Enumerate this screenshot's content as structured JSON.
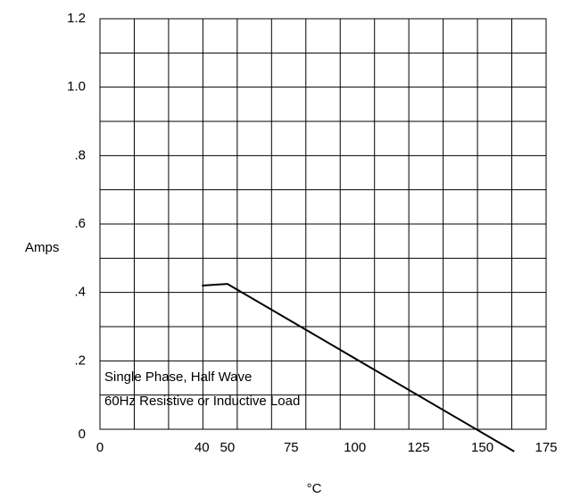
{
  "chart_data": {
    "type": "line",
    "y_label": "Amps",
    "x_label": "°C",
    "annotations": [
      "Single Phase, Half Wave",
      "60Hz Resistive or Inductive Load"
    ],
    "x": [
      40,
      50,
      162.5
    ],
    "series": [
      {
        "color": "#000000",
        "values": [
          0.42,
          0.425,
          -0.065
        ]
      }
    ],
    "xlim": [
      0,
      175
    ],
    "xticks": [
      0,
      40,
      50,
      75,
      100,
      125,
      150,
      175
    ],
    "ylim": [
      0,
      1.2
    ],
    "yticks": [
      0,
      {
        "value": 0.2,
        "label": ".2"
      },
      {
        "value": 0.4,
        "label": ".4"
      },
      {
        "value": 0.6,
        "label": ".6"
      },
      {
        "value": 0.8,
        "label": ".8"
      },
      {
        "value": 1,
        "label": "1.0"
      },
      1.2
    ],
    "grid": true
  }
}
